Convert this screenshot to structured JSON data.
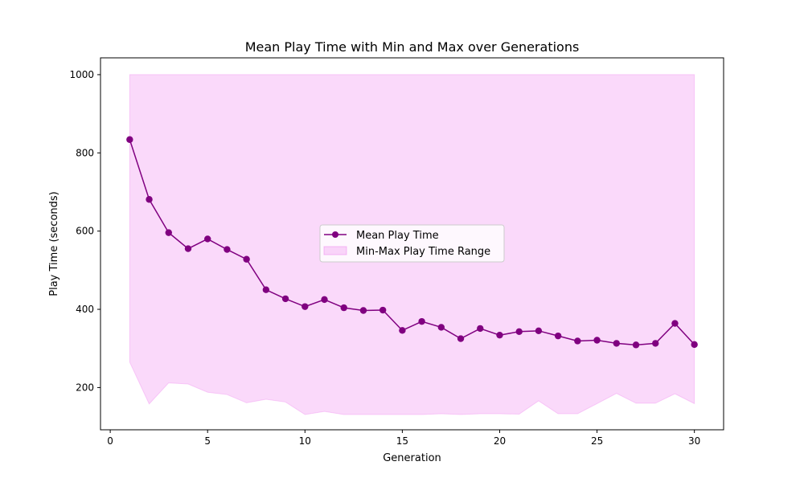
{
  "chart_data": {
    "type": "line",
    "title": "Mean Play Time with Min and Max over Generations",
    "xlabel": "Generation",
    "ylabel": "Play Time (seconds)",
    "xlim": [
      -0.5,
      31.5
    ],
    "ylim": [
      92,
      1043
    ],
    "xticks": [
      0,
      5,
      10,
      15,
      20,
      25,
      30
    ],
    "yticks": [
      200,
      400,
      600,
      800,
      1000
    ],
    "grid": false,
    "legend_position": "center",
    "x": [
      1,
      2,
      3,
      4,
      5,
      6,
      7,
      8,
      9,
      10,
      11,
      12,
      13,
      14,
      15,
      16,
      17,
      18,
      19,
      20,
      21,
      22,
      23,
      24,
      25,
      26,
      27,
      28,
      29,
      30
    ],
    "series": [
      {
        "name": "Mean Play Time",
        "kind": "line-markers",
        "color": "#800080",
        "values": [
          834,
          681,
          596,
          555,
          580,
          553,
          528,
          450,
          427,
          407,
          425,
          404,
          397,
          398,
          346,
          369,
          354,
          325,
          351,
          334,
          343,
          345,
          332,
          319,
          321,
          313,
          309,
          313,
          364,
          310
        ]
      },
      {
        "name": "Min-Max Play Time Range",
        "kind": "fill-between",
        "color": "#ee82ee",
        "upper": [
          1000,
          1000,
          1000,
          1000,
          1000,
          1000,
          1000,
          1000,
          1000,
          1000,
          1000,
          1000,
          1000,
          1000,
          1000,
          1000,
          1000,
          1000,
          1000,
          1000,
          1000,
          1000,
          1000,
          1000,
          1000,
          1000,
          1000,
          1000,
          1000,
          1000
        ],
        "lower": [
          265,
          158,
          212,
          209,
          188,
          182,
          161,
          170,
          163,
          131,
          139,
          131,
          131,
          131,
          131,
          131,
          133,
          131,
          133,
          133,
          132,
          166,
          133,
          133,
          159,
          185,
          160,
          160,
          184,
          159
        ]
      }
    ]
  }
}
